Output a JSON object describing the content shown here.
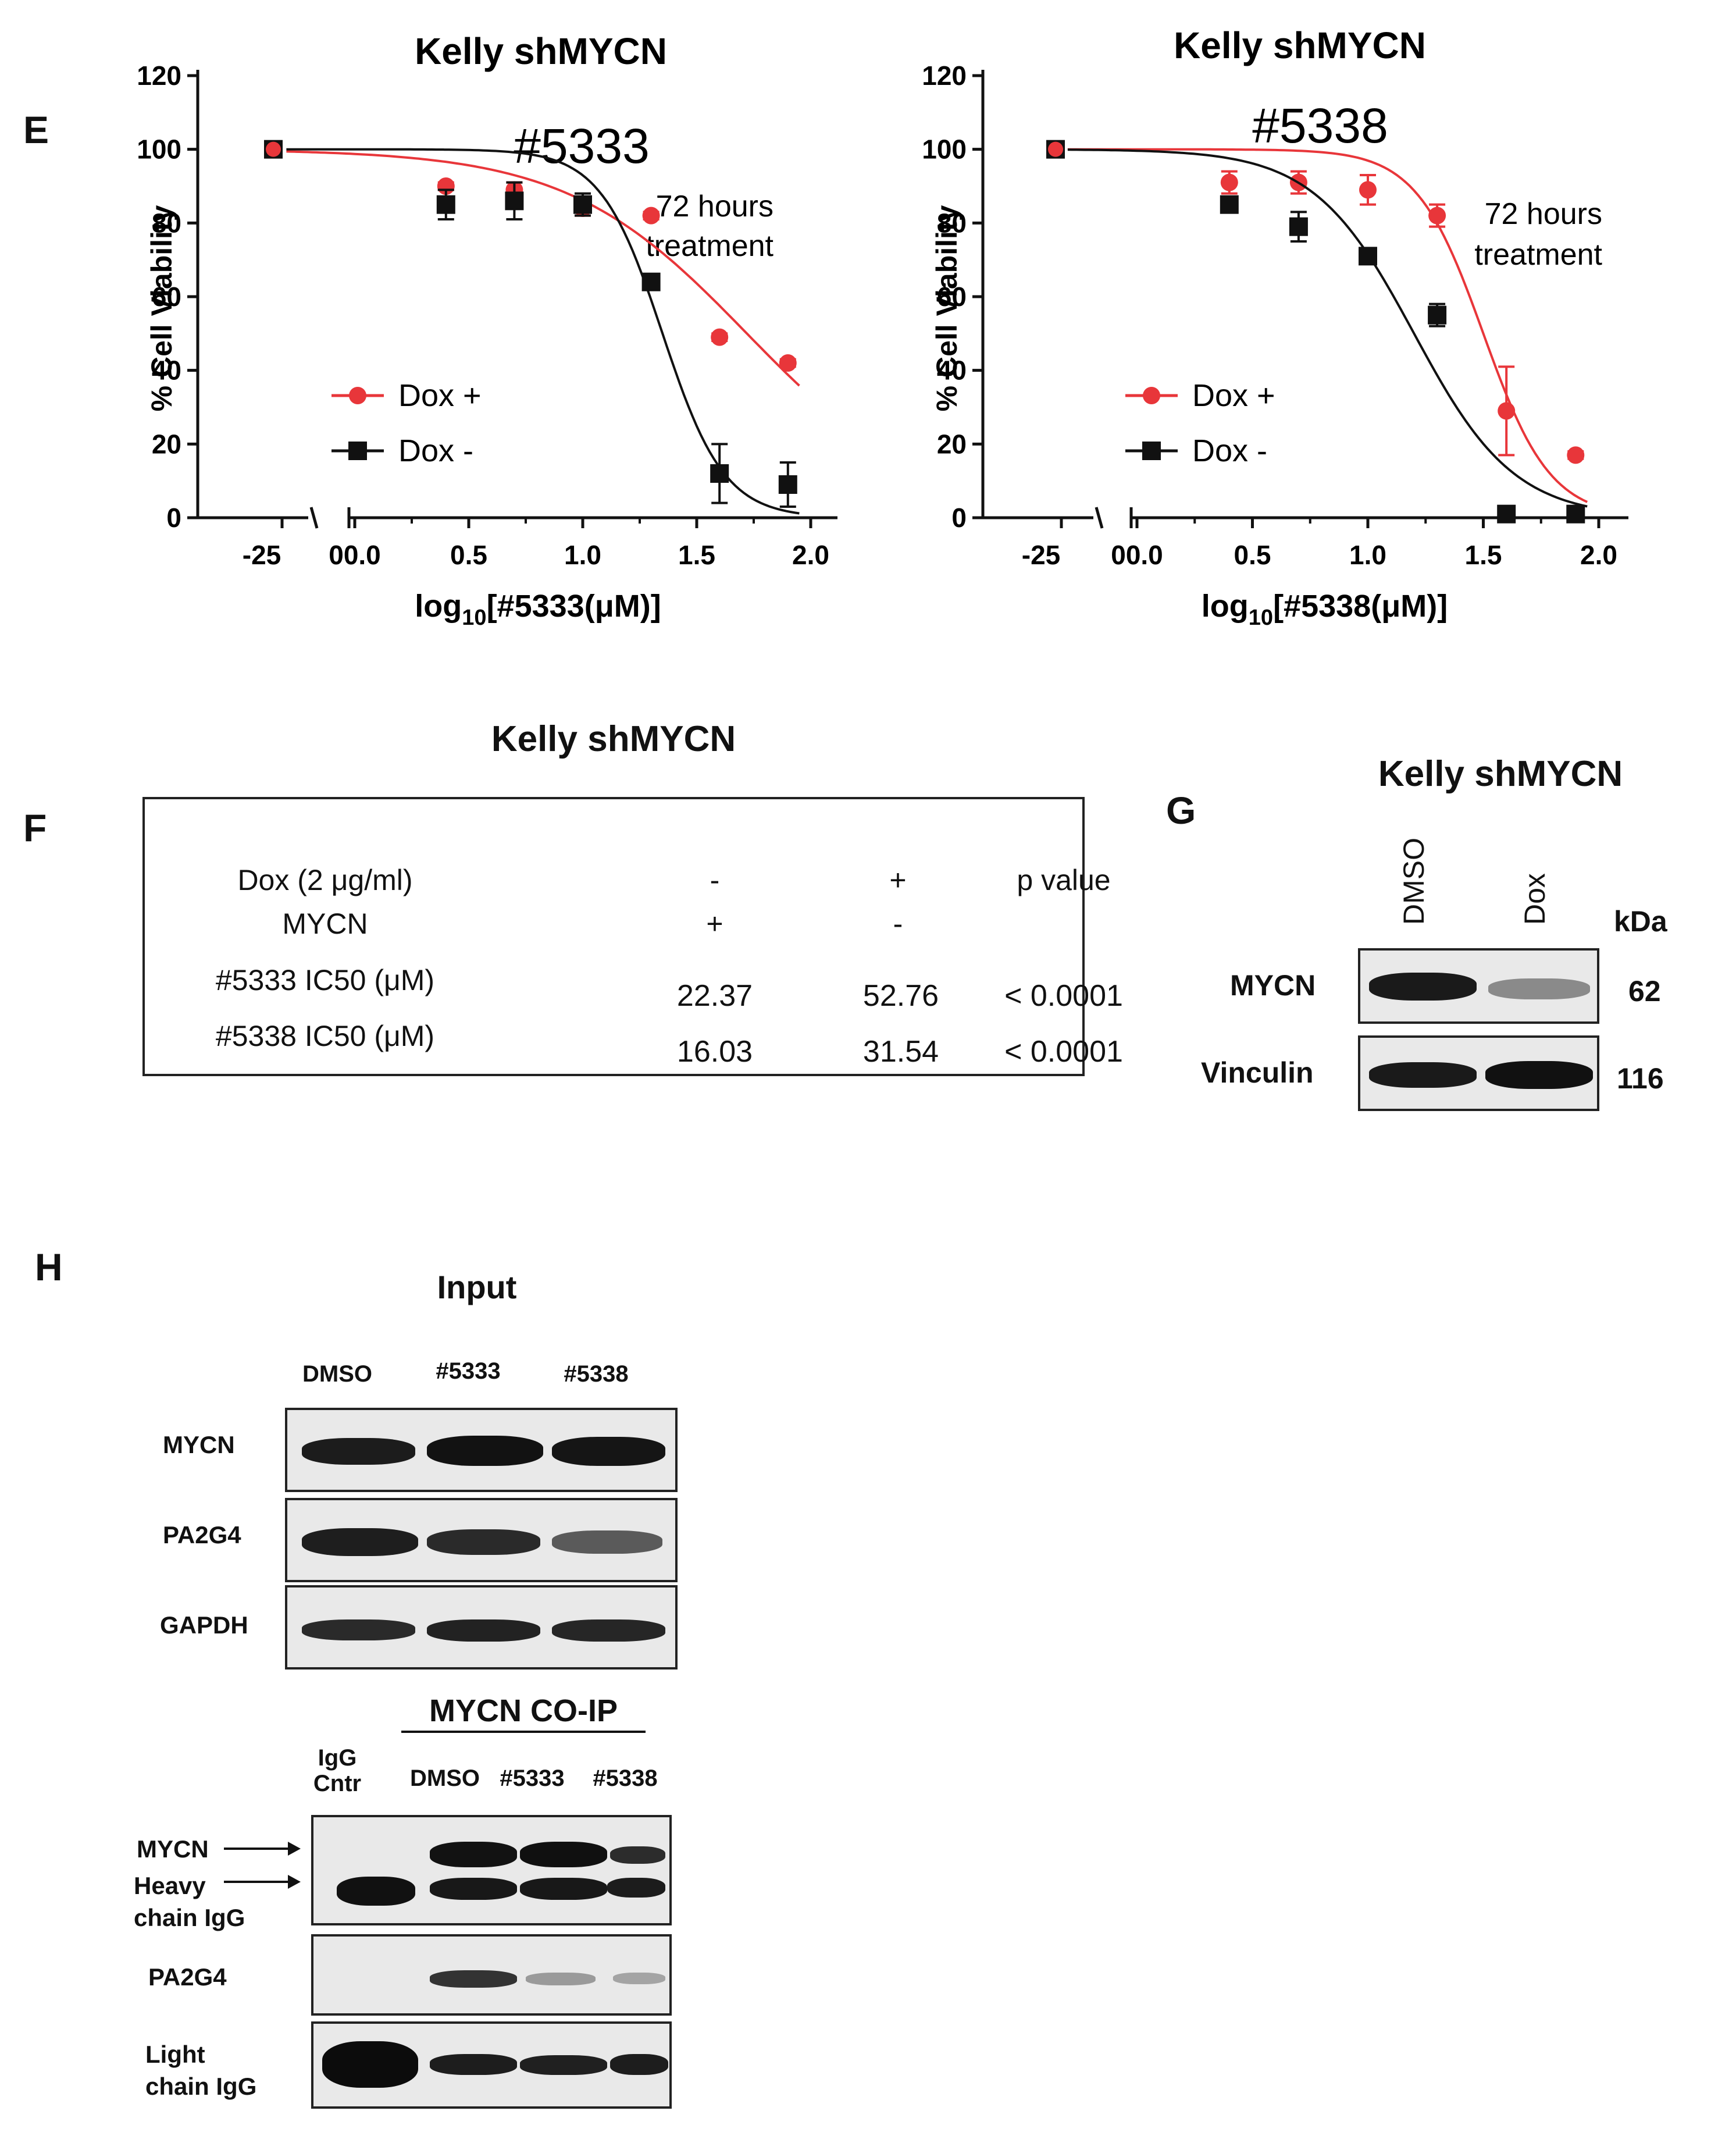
{
  "panels": {
    "E": {
      "letter": "E",
      "chart_data": [
        {
          "type": "scatter",
          "title": "Kelly shMYCN",
          "compound": "#5333",
          "annotation": [
            "72 hours",
            "treatment"
          ],
          "xlabel_main": "log",
          "xlabel_sub": "10",
          "xlabel_rest": "[#5333(μM)]",
          "ylabel": "% Cell Viability",
          "ylim": [
            0,
            120
          ],
          "y_ticks": [
            "0",
            "20",
            "40",
            "60",
            "80",
            "100",
            "120"
          ],
          "x_ticks_left": [
            "-25"
          ],
          "x_ticks_right": [
            "00.0",
            "0.5",
            "1.0",
            "1.5",
            "2.0"
          ],
          "legend": [
            "Dox +",
            "Dox -"
          ],
          "series": [
            {
              "name": "Dox +",
              "color": "#e8363a",
              "x": [
                -25,
                0.4,
                0.7,
                1.0,
                1.3,
                1.6,
                1.9
              ],
              "y": [
                100,
                90,
                89,
                84,
                82,
                49,
                42
              ],
              "err": [
                2,
                1,
                2,
                2,
                1,
                1,
                1
              ],
              "curve": {
                "top": 100,
                "ic50_log": 1.72,
                "hill": 1.1
              }
            },
            {
              "name": "Dox -",
              "color": "#111111",
              "x": [
                -25,
                0.4,
                0.7,
                1.0,
                1.3,
                1.6,
                1.9
              ],
              "y": [
                100,
                85,
                86,
                85,
                64,
                12,
                9
              ],
              "err": [
                2,
                4,
                5,
                3,
                2,
                8,
                6
              ],
              "curve": {
                "top": 100,
                "ic50_log": 1.35,
                "hill": 3.2
              }
            }
          ]
        },
        {
          "type": "scatter",
          "title": "Kelly shMYCN",
          "compound": "#5338",
          "annotation": [
            "72 hours",
            "treatment"
          ],
          "xlabel_main": "log",
          "xlabel_sub": "10",
          "xlabel_rest": "[#5338(μM)]",
          "ylabel": "% Cell Viability",
          "ylim": [
            0,
            120
          ],
          "y_ticks": [
            "0",
            "20",
            "40",
            "60",
            "80",
            "100",
            "120"
          ],
          "x_ticks_left": [
            "-25"
          ],
          "x_ticks_right": [
            "00.0",
            "0.5",
            "1.0",
            "1.5",
            "2.0"
          ],
          "legend": [
            "Dox +",
            "Dox -"
          ],
          "series": [
            {
              "name": "Dox +",
              "color": "#e8363a",
              "x": [
                -25,
                0.4,
                0.7,
                1.0,
                1.3,
                1.6,
                1.9
              ],
              "y": [
                100,
                91,
                91,
                89,
                82,
                29,
                17
              ],
              "err": [
                2,
                3,
                3,
                4,
                3,
                12,
                1
              ],
              "curve": {
                "top": 100,
                "ic50_log": 1.5,
                "hill": 3.0
              }
            },
            {
              "name": "Dox -",
              "color": "#111111",
              "x": [
                -25,
                0.4,
                0.7,
                1.0,
                1.3,
                1.6,
                1.9
              ],
              "y": [
                100,
                85,
                79,
                71,
                55,
                1,
                1
              ],
              "err": [
                2,
                2,
                4,
                2,
                3,
                1,
                1
              ],
              "curve": {
                "top": 100,
                "ic50_log": 1.2,
                "hill": 2.0
              }
            }
          ]
        }
      ]
    },
    "F": {
      "letter": "F",
      "title": "Kelly shMYCN",
      "chart_data": {
        "type": "table",
        "header_rows": [
          [
            "Dox (2 μg/ml)",
            "-",
            "+",
            "p value"
          ],
          [
            "MYCN",
            "+",
            "-",
            ""
          ]
        ],
        "rows": [
          [
            "#5333  IC50  (μM)",
            "22.37",
            "52.76",
            "< 0.0001"
          ],
          [
            "#5338  IC50  (μM)",
            "16.03",
            "31.54",
            "< 0.0001"
          ]
        ]
      }
    },
    "G": {
      "letter": "G",
      "title": "Kelly shMYCN",
      "lanes": [
        "DMSO",
        "Dox"
      ],
      "kda_label": "kDa",
      "rows": [
        {
          "label": "MYCN",
          "kda": "62"
        },
        {
          "label": "Vinculin",
          "kda": "116"
        }
      ]
    },
    "H": {
      "letter": "H",
      "input_title": "Input",
      "input_lanes": [
        "DMSO",
        "#5333",
        "#5338"
      ],
      "input_rows": [
        "MYCN",
        "PA2G4",
        "GAPDH"
      ],
      "coip_title": "MYCN CO-IP",
      "coip_control_lane": [
        "IgG",
        "Cntr"
      ],
      "coip_lanes": [
        "DMSO",
        "#5333",
        "#5338"
      ],
      "coip_labels": {
        "mycn": "MYCN",
        "heavy": [
          "Heavy",
          "chain IgG"
        ],
        "pa2g4": "PA2G4",
        "light": [
          "Light",
          "chain IgG"
        ]
      }
    }
  }
}
